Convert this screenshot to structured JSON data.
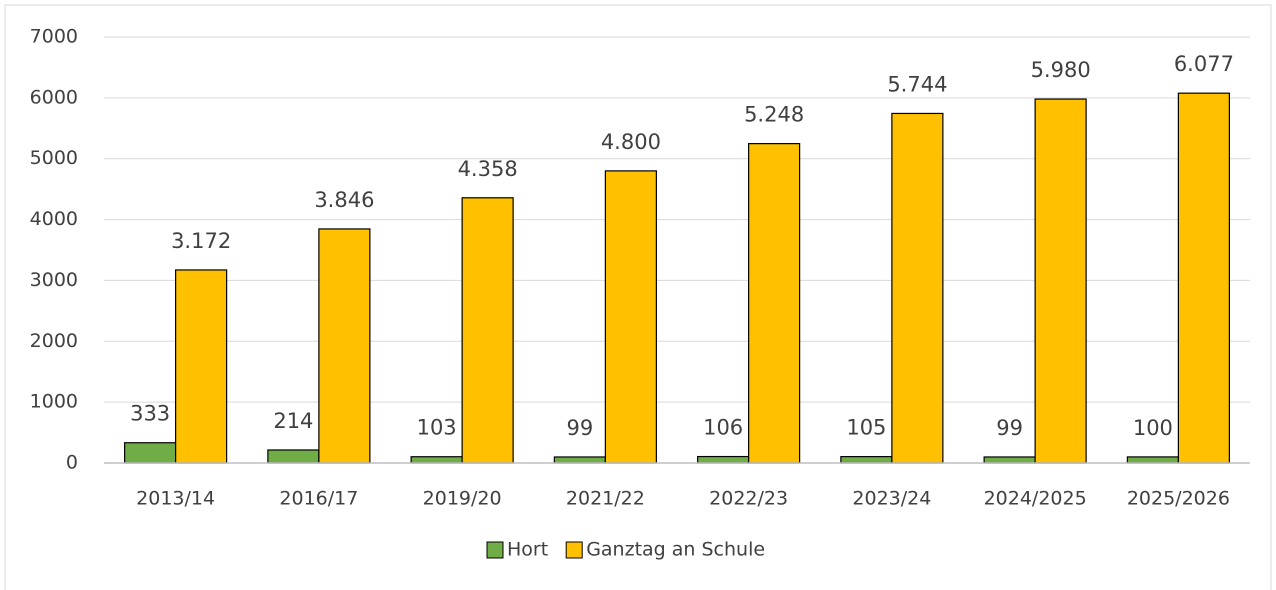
{
  "chart_data": {
    "type": "bar",
    "categories": [
      "2013/14",
      "2016/17",
      "2019/20",
      "2021/22",
      "2022/23",
      "2023/24",
      "2024/2025",
      "2025/2026"
    ],
    "series": [
      {
        "name": "Hort",
        "color": "#70ad47",
        "values": [
          333,
          214,
          103,
          99,
          106,
          105,
          99,
          100
        ]
      },
      {
        "name": "Ganztag an Schule",
        "color": "#ffc000",
        "values": [
          3172,
          3846,
          4358,
          4800,
          5248,
          5744,
          5980,
          6077
        ],
        "value_labels": [
          "3.172",
          "3.846",
          "4.358",
          "4.800",
          "5.248",
          "5.744",
          "5.980",
          "6.077"
        ]
      }
    ],
    "ylim": [
      0,
      7000
    ],
    "yticks": [
      0,
      1000,
      2000,
      3000,
      4000,
      5000,
      6000,
      7000
    ],
    "grid": true,
    "legend": "bottom"
  }
}
